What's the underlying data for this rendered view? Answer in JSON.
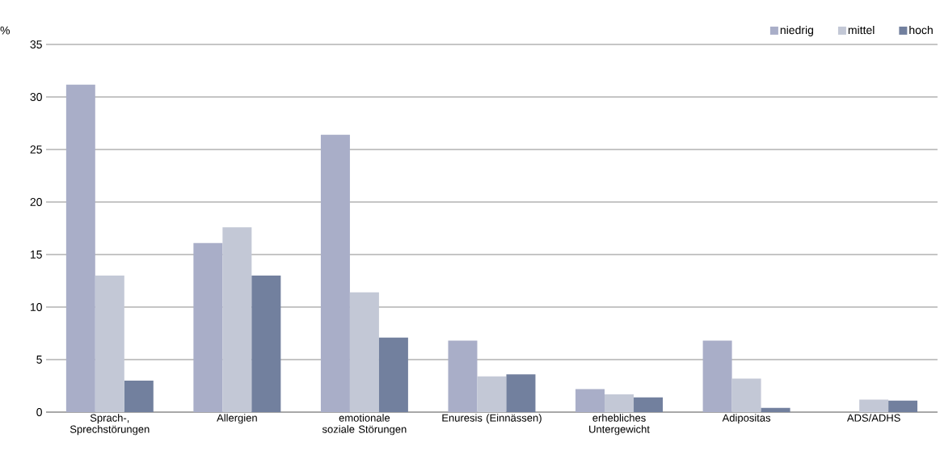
{
  "chart_data": {
    "type": "bar",
    "ylabel": "%",
    "categories": [
      "Sprach-, Sprechstörungen",
      "Allergien",
      "emotionale soziale Störungen",
      "Enuresis (Einnässen)",
      "erhebliches Untergewicht",
      "Adipositas",
      "ADS/ADHS"
    ],
    "series": [
      {
        "name": "niedrig",
        "color": "#a9aec8",
        "values": [
          31.2,
          16.1,
          26.4,
          6.8,
          2.2,
          6.8,
          null
        ]
      },
      {
        "name": "mittel",
        "color": "#c3c8d6",
        "values": [
          13.0,
          17.6,
          11.4,
          3.4,
          1.7,
          3.2,
          1.2
        ]
      },
      {
        "name": "hoch",
        "color": "#72809e",
        "values": [
          3.0,
          13.0,
          7.1,
          3.6,
          1.4,
          0.4,
          1.1
        ]
      }
    ],
    "ylim": [
      0,
      35
    ],
    "yticks": [
      0,
      5,
      10,
      15,
      20,
      25,
      30,
      35
    ],
    "grid": "y",
    "legend": "top right"
  }
}
